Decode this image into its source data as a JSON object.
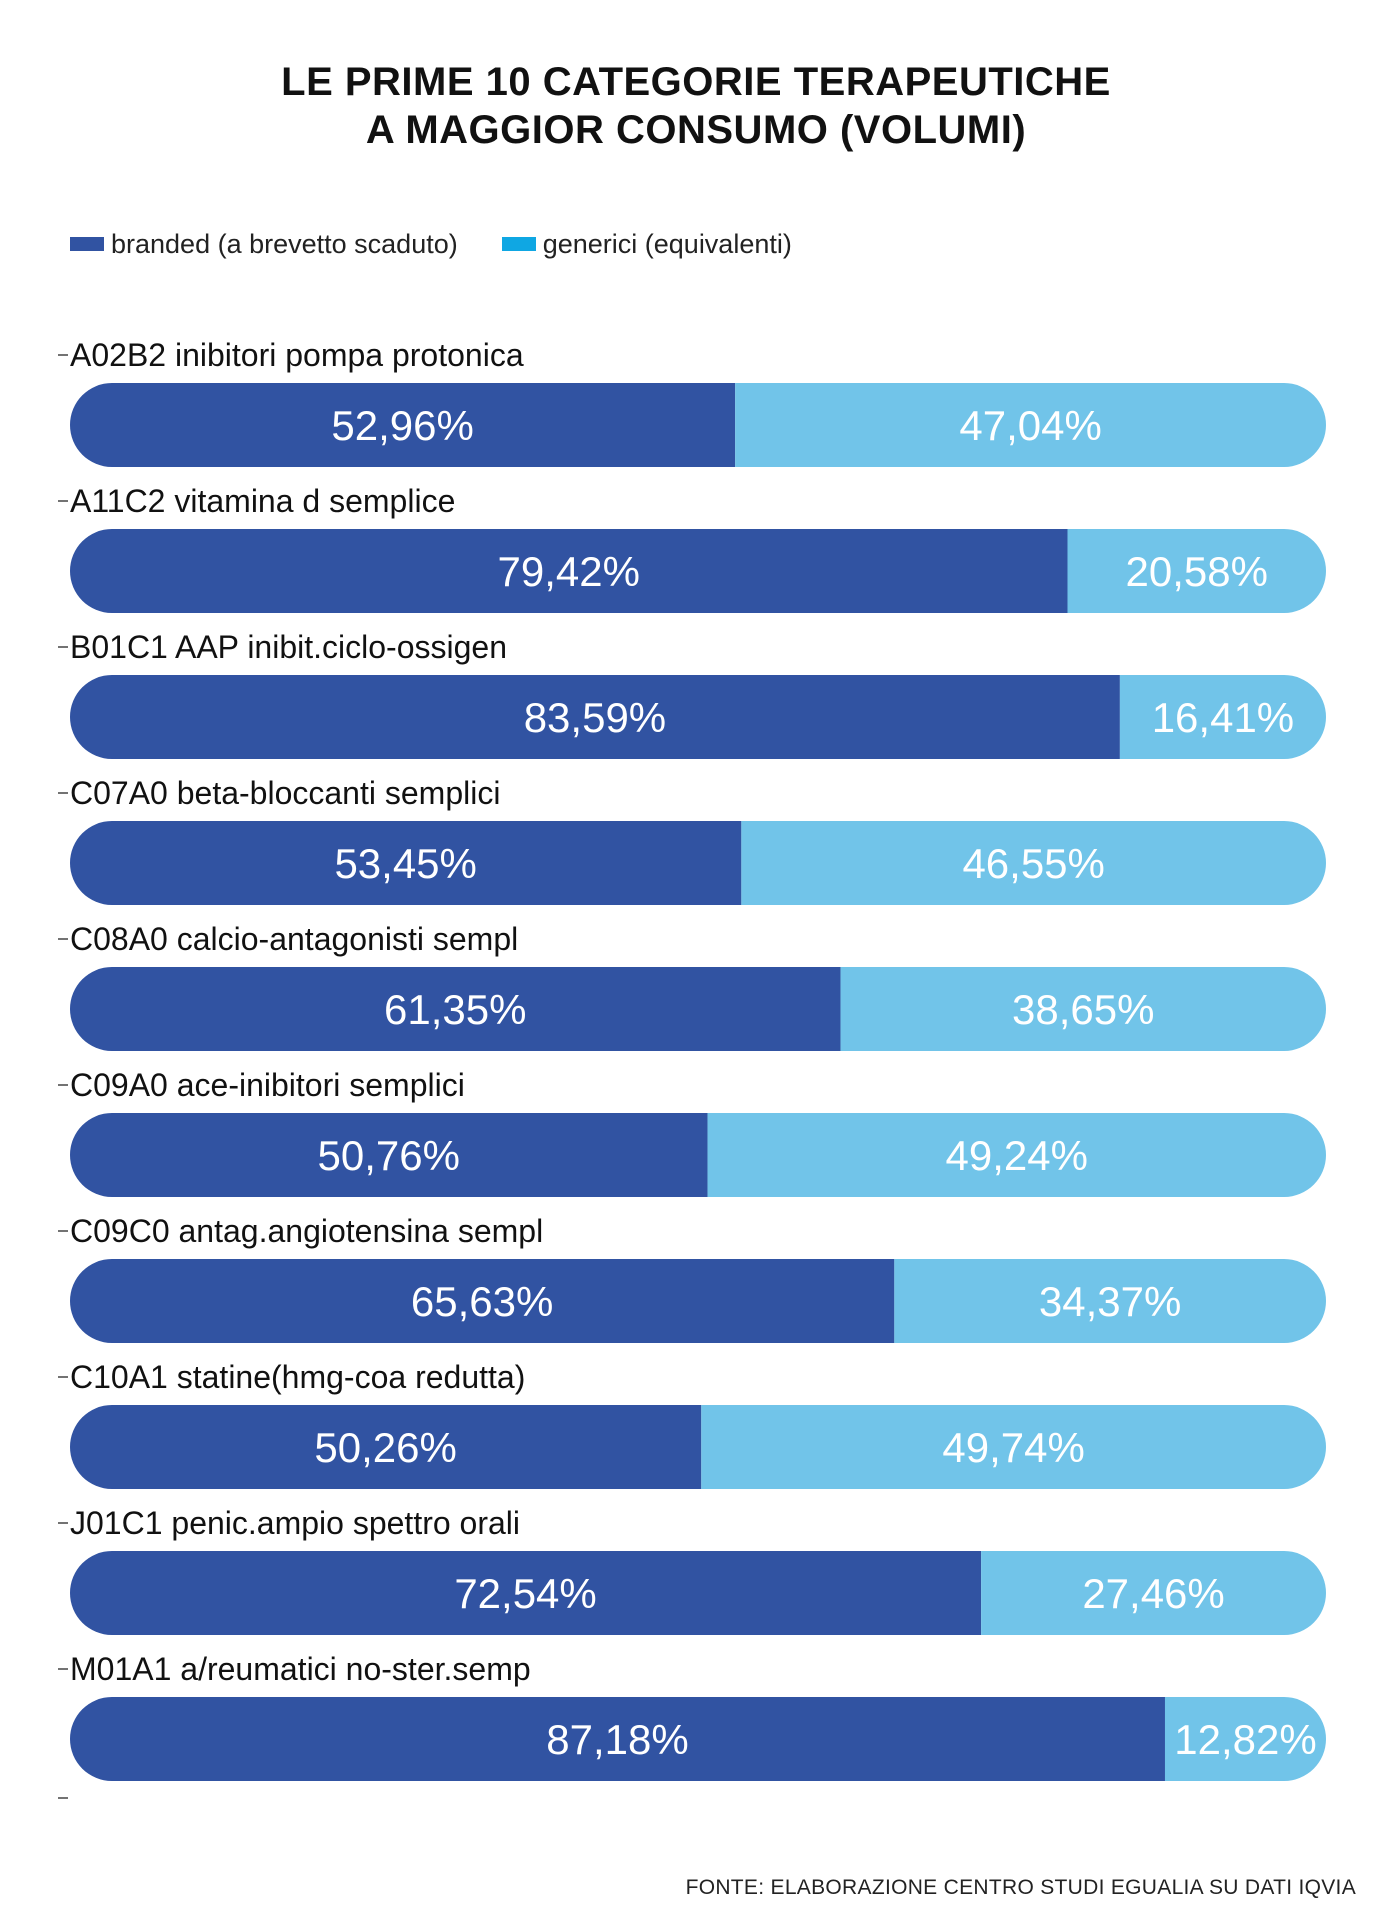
{
  "title": {
    "line1": "LE PRIME 10 CATEGORIE TERAPEUTICHE",
    "line2": "A MAGGIOR CONSUMO (VOLUMI)"
  },
  "legend": {
    "branded": "branded (a brevetto scaduto)",
    "generic": "generici (equivalenti)"
  },
  "colors": {
    "branded": "#3153A2",
    "generic": "#71C4E9",
    "legend_generic": "#0FA7E3"
  },
  "source": "FONTE: ELABORAZIONE CENTRO STUDI EGUALIA SU DATI IQVIA",
  "chart_data": {
    "type": "bar",
    "orientation": "horizontal",
    "stacked": true,
    "normalized": true,
    "categories": [
      "A02B2 inibitori pompa protonica",
      "A11C2 vitamina d semplice",
      "B01C1 AAP inibit.ciclo-ossigen",
      "C07A0 beta-bloccanti semplici",
      "C08A0 calcio-antagonisti sempl",
      "C09A0 ace-inibitori semplici",
      "C09C0 antag.angiotensina sempl",
      "C10A1 statine(hmg-coa redutta)",
      "J01C1 penic.ampio spettro orali",
      "M01A1 a/reumatici no-ster.semp"
    ],
    "series": [
      {
        "name": "branded (a brevetto scaduto)",
        "values": [
          52.96,
          79.42,
          83.59,
          53.45,
          61.35,
          50.76,
          65.63,
          50.26,
          72.54,
          87.18
        ],
        "labels": [
          "52,96%",
          "79,42%",
          "83,59%",
          "53,45%",
          "61,35%",
          "50,76%",
          "65,63%",
          "50,26%",
          "72,54%",
          "87,18%"
        ]
      },
      {
        "name": "generici (equivalenti)",
        "values": [
          47.04,
          20.58,
          16.41,
          46.55,
          38.65,
          49.24,
          34.37,
          49.74,
          27.46,
          12.82
        ],
        "labels": [
          "47,04%",
          "20,58%",
          "16,41%",
          "46,55%",
          "38,65%",
          "49,24%",
          "34,37%",
          "49,74%",
          "27,46%",
          "12,82%"
        ]
      }
    ],
    "xlim": [
      0,
      100
    ],
    "legend_position": "top-left"
  }
}
